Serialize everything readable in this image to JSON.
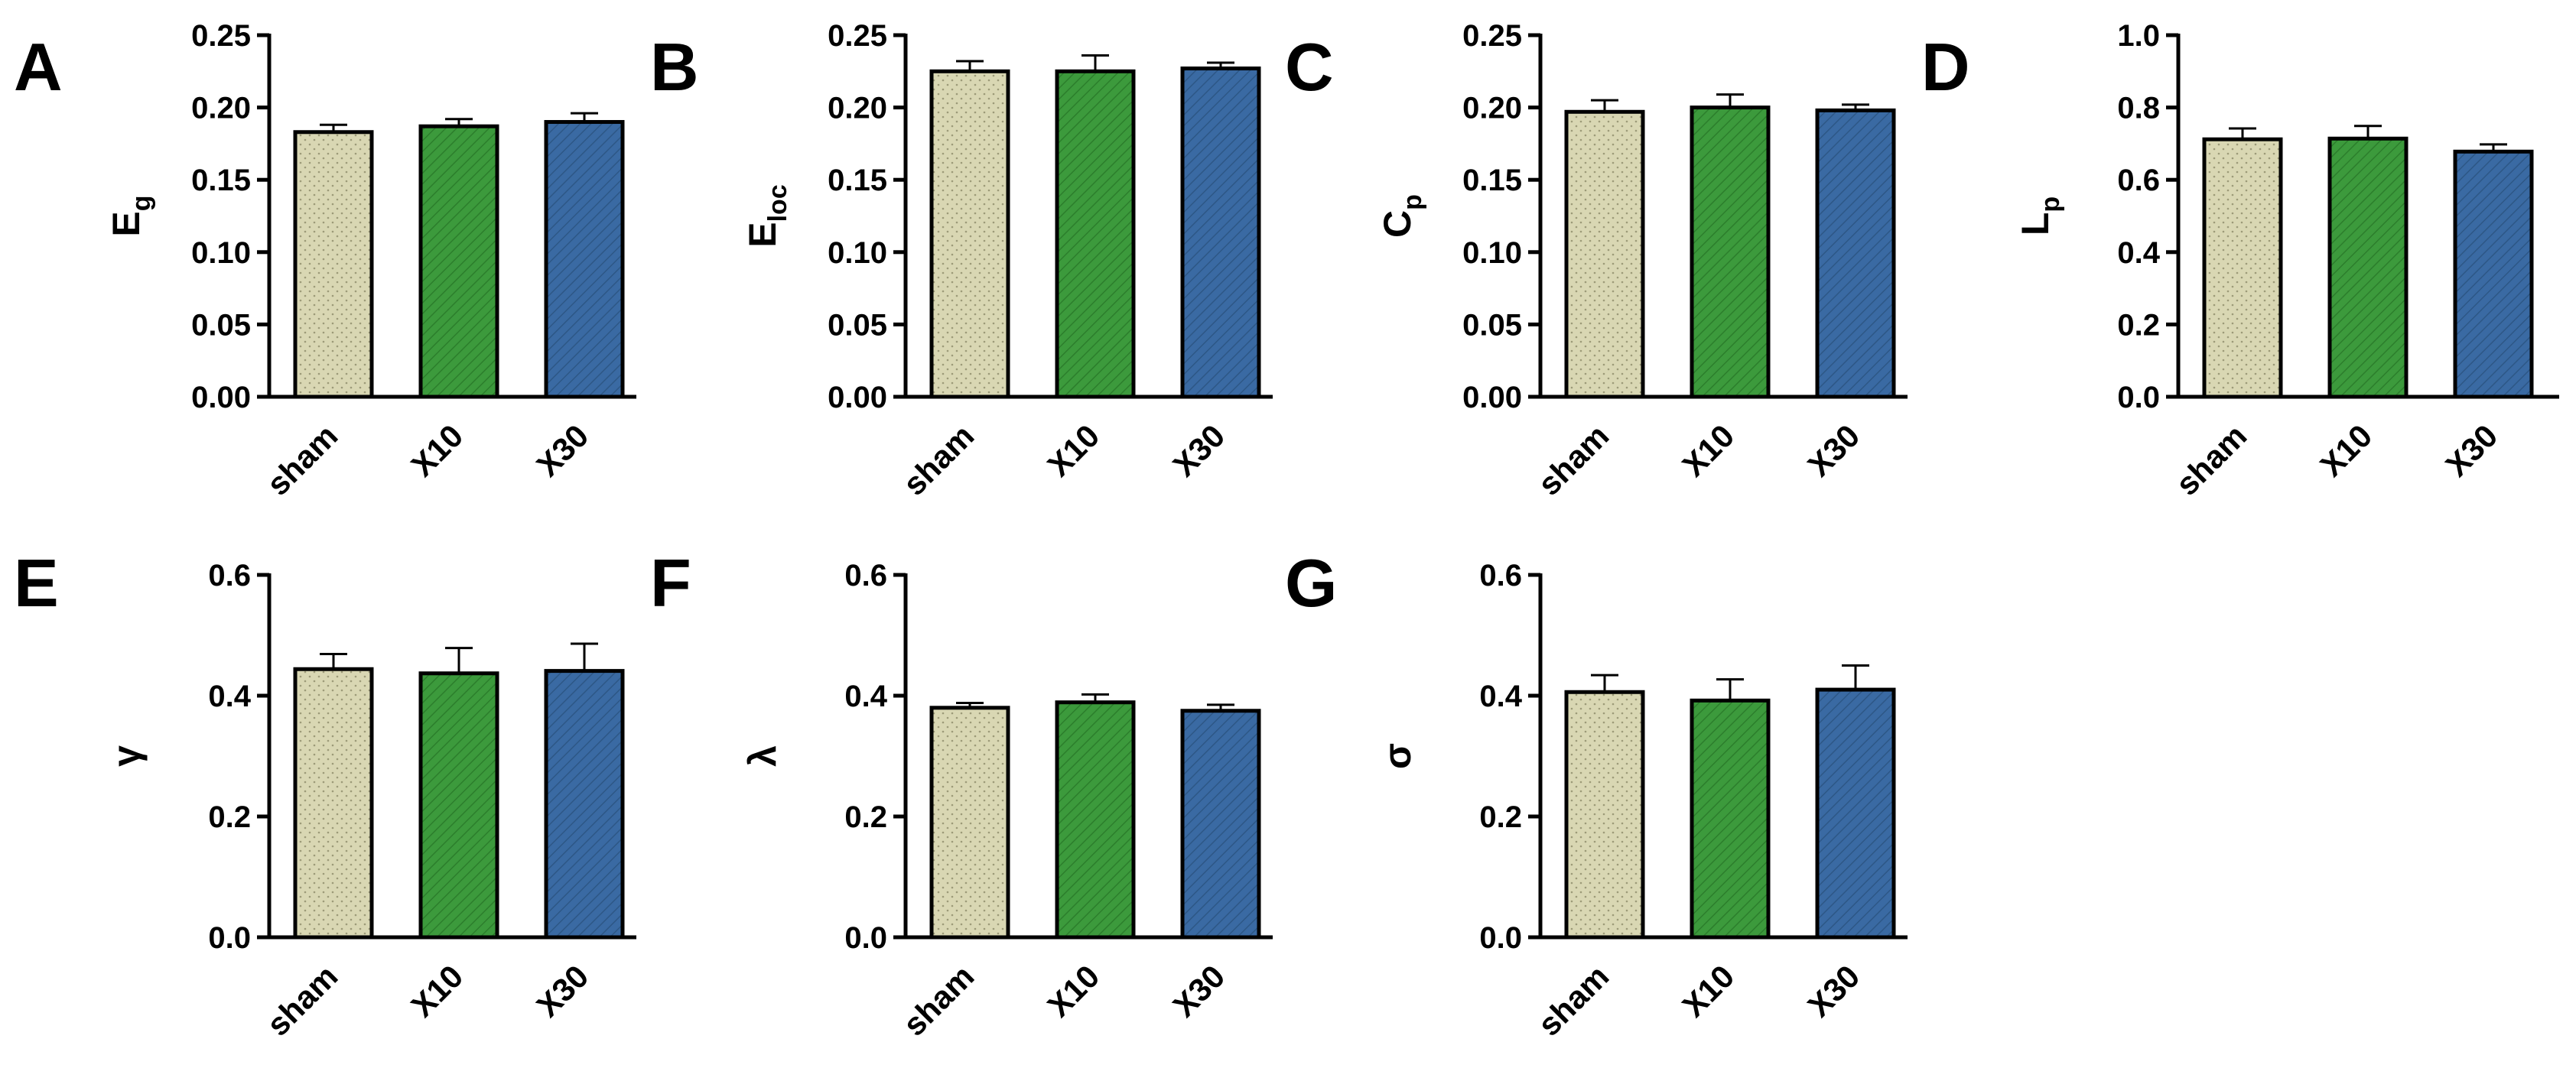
{
  "colors": {
    "sham": "#d9d7b3",
    "X10": "#3c9a3c",
    "X30": "#3a6aa3",
    "axis": "#000000"
  },
  "chart_data": [
    {
      "panel": "A",
      "type": "bar",
      "ylabel": {
        "main": "E",
        "sub": "g"
      },
      "categories": [
        "sham",
        "X10",
        "X30"
      ],
      "values": [
        0.183,
        0.187,
        0.19
      ],
      "errors": [
        0.005,
        0.005,
        0.006
      ],
      "ylim": [
        0,
        0.25
      ],
      "yticks": [
        "0.00",
        "0.05",
        "0.10",
        "0.15",
        "0.20",
        "0.25"
      ]
    },
    {
      "panel": "B",
      "type": "bar",
      "ylabel": {
        "main": "E",
        "sub": "loc"
      },
      "categories": [
        "sham",
        "X10",
        "X30"
      ],
      "values": [
        0.225,
        0.225,
        0.227
      ],
      "errors": [
        0.007,
        0.011,
        0.004
      ],
      "ylim": [
        0,
        0.25
      ],
      "yticks": [
        "0.00",
        "0.05",
        "0.10",
        "0.15",
        "0.20",
        "0.25"
      ]
    },
    {
      "panel": "C",
      "type": "bar",
      "ylabel": {
        "main": "C",
        "sub": "p"
      },
      "categories": [
        "sham",
        "X10",
        "X30"
      ],
      "values": [
        0.197,
        0.2,
        0.198
      ],
      "errors": [
        0.008,
        0.009,
        0.004
      ],
      "ylim": [
        0,
        0.25
      ],
      "yticks": [
        "0.00",
        "0.05",
        "0.10",
        "0.15",
        "0.20",
        "0.25"
      ]
    },
    {
      "panel": "D",
      "type": "bar",
      "ylabel": {
        "main": "L",
        "sub": "p"
      },
      "categories": [
        "sham",
        "X10",
        "X30"
      ],
      "values": [
        0.712,
        0.714,
        0.678
      ],
      "errors": [
        0.03,
        0.035,
        0.02
      ],
      "ylim": [
        0,
        1.0
      ],
      "yticks": [
        "0.0",
        "0.2",
        "0.4",
        "0.6",
        "0.8",
        "1.0"
      ]
    },
    {
      "panel": "E",
      "type": "bar",
      "ylabel": {
        "main": "γ",
        "sub": ""
      },
      "categories": [
        "sham",
        "X10",
        "X30"
      ],
      "values": [
        0.444,
        0.437,
        0.441
      ],
      "errors": [
        0.025,
        0.042,
        0.045
      ],
      "ylim": [
        0,
        0.6
      ],
      "yticks": [
        "0.0",
        "0.2",
        "0.4",
        "0.6"
      ]
    },
    {
      "panel": "F",
      "type": "bar",
      "ylabel": {
        "main": "λ",
        "sub": ""
      },
      "categories": [
        "sham",
        "X10",
        "X30"
      ],
      "values": [
        0.38,
        0.389,
        0.375
      ],
      "errors": [
        0.008,
        0.013,
        0.01
      ],
      "ylim": [
        0,
        0.6
      ],
      "yticks": [
        "0.0",
        "0.2",
        "0.4",
        "0.6"
      ]
    },
    {
      "panel": "G",
      "type": "bar",
      "ylabel": {
        "main": "σ",
        "sub": ""
      },
      "categories": [
        "sham",
        "X10",
        "X30"
      ],
      "values": [
        0.406,
        0.392,
        0.41
      ],
      "errors": [
        0.028,
        0.035,
        0.04
      ],
      "ylim": [
        0,
        0.6
      ],
      "yticks": [
        "0.0",
        "0.2",
        "0.4",
        "0.6"
      ]
    }
  ]
}
